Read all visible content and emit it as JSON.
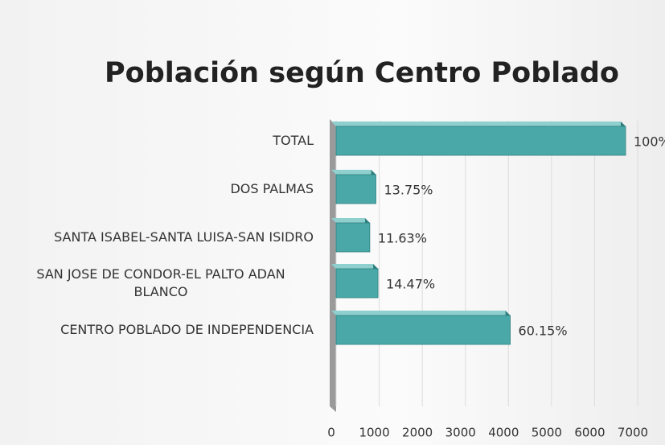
{
  "chart_data": {
    "type": "bar",
    "orientation": "horizontal",
    "title": "Población según Centro Poblado",
    "categories": [
      "TOTAL",
      "DOS PALMAS",
      "SANTA ISABEL-SANTA LUISA-SAN ISIDRO",
      "SAN JOSE DE CONDOR-EL PALTO ADAN BLANCO",
      "CENTRO POBLADO DE INDEPENDENCIA"
    ],
    "values": [
      6720,
      924,
      782,
      972,
      4042
    ],
    "value_labels": [
      "100%",
      "13.75%",
      "11.63%",
      "14.47%",
      "60.15%"
    ],
    "color": "#4aa9a8",
    "xlim": [
      0,
      7000
    ],
    "xticks": [
      0,
      1000,
      2000,
      3000,
      4000,
      5000,
      6000,
      7000
    ],
    "grid": true
  }
}
